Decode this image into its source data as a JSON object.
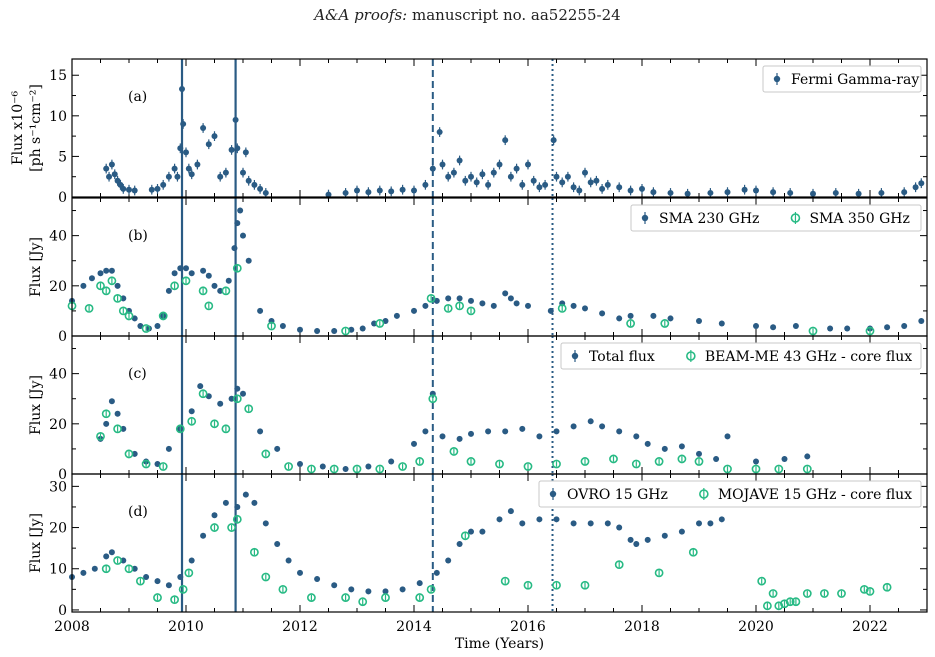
{
  "header": {
    "italic": "A&A proofs:",
    "rest": " manuscript no. aa52255-24"
  },
  "chart_data": {
    "type": "scatter",
    "xlabel": "Time (Years)",
    "xlim": [
      2008,
      2023
    ],
    "x_ticks": [
      "2008",
      "2010",
      "2012",
      "2014",
      "2016",
      "2018",
      "2020",
      "2022"
    ],
    "vlines": [
      {
        "x": 2009.93,
        "style": "solid"
      },
      {
        "x": 2010.87,
        "style": "solid"
      },
      {
        "x": 2014.33,
        "style": "dashed"
      },
      {
        "x": 2016.43,
        "style": "dotted"
      }
    ],
    "colors": {
      "dark": "#2a5b84",
      "green": "#27ba84"
    },
    "panels": [
      {
        "label": "(a)",
        "ylabel": [
          "Flux x10⁻⁶",
          "[ph s⁻¹cm⁻²]"
        ],
        "ylim": [
          0,
          17
        ],
        "y_ticks": [
          "0",
          "5",
          "10",
          "15"
        ],
        "legend": [
          "Fermi Gamma-ray"
        ],
        "series": [
          {
            "name": "Fermi Gamma-ray",
            "marker": "filled",
            "color": "#2a5b84",
            "x": [
              2008.6,
              2008.65,
              2008.7,
              2008.75,
              2008.8,
              2008.85,
              2008.9,
              2009.0,
              2009.1,
              2009.4,
              2009.5,
              2009.6,
              2009.7,
              2009.8,
              2009.85,
              2009.9,
              2009.93,
              2009.95,
              2010.0,
              2010.05,
              2010.1,
              2010.2,
              2010.3,
              2010.4,
              2010.5,
              2010.6,
              2010.7,
              2010.8,
              2010.87,
              2010.9,
              2011.0,
              2011.05,
              2011.1,
              2011.2,
              2011.3,
              2011.4,
              2012.5,
              2012.8,
              2013.0,
              2013.2,
              2013.4,
              2013.6,
              2013.8,
              2014.0,
              2014.2,
              2014.33,
              2014.45,
              2014.5,
              2014.6,
              2014.7,
              2014.8,
              2014.9,
              2015.0,
              2015.1,
              2015.2,
              2015.3,
              2015.4,
              2015.5,
              2015.6,
              2015.7,
              2015.8,
              2015.9,
              2016.0,
              2016.1,
              2016.2,
              2016.3,
              2016.45,
              2016.5,
              2016.6,
              2016.7,
              2016.8,
              2016.9,
              2017.0,
              2017.1,
              2017.2,
              2017.3,
              2017.4,
              2017.6,
              2017.8,
              2018.0,
              2018.2,
              2018.5,
              2018.8,
              2019.2,
              2019.5,
              2019.8,
              2020.0,
              2020.3,
              2020.6,
              2021.0,
              2021.4,
              2021.8,
              2022.2,
              2022.6,
              2022.8,
              2022.9
            ],
            "y": [
              3.5,
              2.5,
              4.0,
              2.8,
              2.0,
              1.5,
              1.0,
              0.9,
              0.8,
              0.9,
              1.0,
              1.5,
              2.5,
              3.5,
              2.5,
              6.0,
              13.3,
              9.0,
              5.5,
              3.5,
              2.8,
              4.0,
              8.5,
              6.5,
              7.5,
              2.5,
              3.0,
              5.8,
              9.5,
              6.0,
              3.0,
              5.5,
              2.0,
              1.5,
              1.0,
              0.5,
              0.3,
              0.5,
              0.8,
              0.6,
              0.8,
              0.7,
              0.9,
              0.8,
              1.5,
              3.5,
              8.0,
              4.0,
              2.5,
              3.0,
              4.5,
              2.0,
              2.5,
              1.8,
              2.8,
              1.5,
              3.0,
              4.0,
              7.0,
              2.5,
              3.5,
              1.5,
              4.0,
              2.0,
              1.2,
              1.5,
              7.0,
              2.5,
              1.8,
              2.5,
              1.2,
              0.8,
              3.0,
              1.8,
              2.0,
              1.0,
              1.5,
              1.2,
              0.8,
              1.0,
              0.6,
              0.5,
              0.4,
              0.5,
              0.6,
              0.9,
              0.8,
              0.6,
              0.5,
              0.4,
              0.5,
              0.4,
              0.5,
              0.6,
              1.2,
              1.7
            ]
          }
        ]
      },
      {
        "label": "(b)",
        "ylabel": [
          "Flux [Jy]"
        ],
        "ylim": [
          0,
          55
        ],
        "y_ticks": [
          "0",
          "20",
          "40"
        ],
        "legend": [
          "SMA 230 GHz",
          "SMA 350 GHz"
        ],
        "series": [
          {
            "name": "SMA 230 GHz",
            "marker": "filled",
            "color": "#2a5b84",
            "x": [
              2008.0,
              2008.2,
              2008.35,
              2008.5,
              2008.6,
              2008.7,
              2008.8,
              2008.9,
              2009.0,
              2009.1,
              2009.2,
              2009.35,
              2009.5,
              2009.6,
              2009.7,
              2009.8,
              2009.9,
              2010.0,
              2010.1,
              2010.3,
              2010.4,
              2010.5,
              2010.6,
              2010.75,
              2010.85,
              2010.9,
              2010.95,
              2011.0,
              2011.1,
              2011.3,
              2011.5,
              2011.7,
              2012.0,
              2012.3,
              2012.6,
              2012.9,
              2013.1,
              2013.3,
              2013.5,
              2013.7,
              2014.0,
              2014.2,
              2014.4,
              2014.6,
              2014.8,
              2015.0,
              2015.2,
              2015.4,
              2015.6,
              2015.7,
              2015.8,
              2016.0,
              2016.4,
              2016.6,
              2016.8,
              2017.0,
              2017.3,
              2017.6,
              2017.8,
              2018.2,
              2018.5,
              2019.0,
              2019.4,
              2020.0,
              2020.3,
              2020.7,
              2021.3,
              2021.6,
              2022.0,
              2022.3,
              2022.6,
              2022.9
            ],
            "y": [
              14,
              20,
              23,
              25,
              26,
              26,
              20,
              15,
              10,
              7,
              4,
              3,
              4,
              8,
              18,
              25,
              27,
              27,
              25,
              26,
              24,
              20,
              18,
              22,
              35,
              45,
              50,
              40,
              30,
              10,
              6,
              4,
              2.5,
              2,
              2,
              2.5,
              3,
              5,
              6,
              8,
              10,
              12,
              14,
              15,
              15,
              14,
              13,
              12,
              17,
              15,
              13,
              12,
              10,
              13,
              12,
              11,
              9,
              7,
              8,
              8,
              7,
              6,
              5,
              4,
              3.5,
              4,
              3,
              3,
              3,
              3.5,
              4,
              6
            ]
          },
          {
            "name": "SMA 350 GHz",
            "marker": "open",
            "color": "#27ba84",
            "x": [
              2008.0,
              2008.3,
              2008.5,
              2008.6,
              2008.7,
              2008.8,
              2008.9,
              2009.0,
              2009.3,
              2009.6,
              2009.8,
              2010.0,
              2010.3,
              2010.4,
              2010.7,
              2010.9,
              2011.5,
              2012.8,
              2013.4,
              2014.3,
              2014.6,
              2014.8,
              2015.0,
              2016.6,
              2017.8,
              2018.4,
              2021.0,
              2022.0
            ],
            "y": [
              12,
              11,
              20,
              18,
              22,
              15,
              10,
              8,
              3,
              8,
              20,
              22,
              18,
              12,
              18,
              27,
              4,
              2,
              5,
              15,
              11,
              12,
              10,
              11,
              5,
              5,
              2,
              2
            ]
          }
        ]
      },
      {
        "label": "(c)",
        "ylabel": [
          "Flux [Jy]"
        ],
        "ylim": [
          0,
          55
        ],
        "y_ticks": [
          "0",
          "20",
          "40"
        ],
        "legend": [
          "Total flux",
          "BEAM-ME 43 GHz - core flux"
        ],
        "series": [
          {
            "name": "Total flux",
            "marker": "filled",
            "color": "#2a5b84",
            "x": [
              2008.5,
              2008.6,
              2008.7,
              2008.8,
              2008.9,
              2009.1,
              2009.3,
              2009.5,
              2009.7,
              2009.9,
              2010.1,
              2010.25,
              2010.4,
              2010.6,
              2010.8,
              2010.9,
              2011.0,
              2011.3,
              2011.6,
              2012.0,
              2012.4,
              2012.8,
              2013.2,
              2013.6,
              2014.0,
              2014.2,
              2014.33,
              2014.5,
              2014.8,
              2015.0,
              2015.3,
              2015.6,
              2015.9,
              2016.2,
              2016.5,
              2016.8,
              2017.1,
              2017.3,
              2017.6,
              2017.9,
              2018.1,
              2018.4,
              2018.7,
              2019.0,
              2019.3,
              2019.5,
              2020.0,
              2020.5,
              2020.9
            ],
            "y": [
              14,
              20,
              29,
              24,
              18,
              8,
              5,
              4,
              10,
              18,
              25,
              35,
              31,
              28,
              30,
              34,
              32,
              17,
              10,
              4,
              3,
              2,
              3,
              5,
              12,
              17,
              32,
              15,
              14,
              16,
              17,
              17,
              18,
              15,
              17,
              19,
              21,
              19,
              17,
              15,
              12,
              10,
              11,
              8,
              6,
              15,
              5,
              6,
              7
            ]
          },
          {
            "name": "BEAM-ME 43 GHz - core flux",
            "marker": "open",
            "color": "#27ba84",
            "x": [
              2008.5,
              2008.6,
              2008.8,
              2009.0,
              2009.3,
              2009.6,
              2009.9,
              2010.1,
              2010.3,
              2010.5,
              2010.7,
              2010.9,
              2011.1,
              2011.4,
              2011.8,
              2012.2,
              2012.6,
              2013.0,
              2013.4,
              2013.8,
              2014.1,
              2014.33,
              2014.7,
              2015.0,
              2015.5,
              2016.0,
              2016.5,
              2017.0,
              2017.5,
              2017.9,
              2018.3,
              2018.7,
              2019.0,
              2019.5,
              2020.0,
              2020.4,
              2020.9
            ],
            "y": [
              15,
              24,
              18,
              8,
              4,
              3,
              18,
              21,
              32,
              20,
              18,
              30,
              26,
              8,
              3,
              2,
              2,
              2,
              2,
              3,
              5,
              30,
              9,
              5,
              4,
              3,
              4,
              5,
              6,
              4,
              5,
              6,
              5,
              2,
              2,
              2,
              2
            ]
          }
        ]
      },
      {
        "label": "(d)",
        "ylabel": [
          "Flux [Jy]"
        ],
        "ylim": [
          -0.5,
          33
        ],
        "y_ticks": [
          "0",
          "10",
          "20",
          "30"
        ],
        "legend": [
          "OVRO 15 GHz",
          "MOJAVE 15 GHz - core flux"
        ],
        "series": [
          {
            "name": "OVRO 15 GHz",
            "marker": "filled",
            "color": "#2a5b84",
            "x": [
              2008.0,
              2008.2,
              2008.4,
              2008.6,
              2008.7,
              2008.9,
              2009.1,
              2009.3,
              2009.5,
              2009.7,
              2009.9,
              2010.1,
              2010.3,
              2010.5,
              2010.7,
              2010.9,
              2011.05,
              2011.2,
              2011.4,
              2011.6,
              2011.8,
              2012.0,
              2012.3,
              2012.6,
              2012.9,
              2013.2,
              2013.5,
              2013.8,
              2014.1,
              2014.4,
              2014.6,
              2014.8,
              2015.0,
              2015.2,
              2015.5,
              2015.7,
              2015.9,
              2016.2,
              2016.5,
              2016.8,
              2017.1,
              2017.4,
              2017.6,
              2017.8,
              2017.9,
              2018.1,
              2018.4,
              2018.7,
              2019.0,
              2019.2,
              2019.4
            ],
            "y": [
              8,
              9,
              10,
              13,
              14,
              12,
              10,
              8,
              7,
              6,
              8,
              12,
              18,
              23,
              26,
              25,
              28,
              26,
              21,
              16,
              12,
              9,
              7.5,
              6,
              5,
              4.5,
              4.5,
              5,
              6.5,
              9,
              12,
              16,
              19,
              19,
              22,
              24,
              21,
              22,
              22,
              21,
              21,
              21,
              20,
              17,
              16,
              17,
              18,
              19,
              21,
              21,
              22
            ]
          },
          {
            "name": "MOJAVE 15 GHz - core flux",
            "marker": "open",
            "color": "#27ba84",
            "x": [
              2008.6,
              2008.8,
              2009.0,
              2009.2,
              2009.5,
              2009.8,
              2009.95,
              2010.05,
              2010.5,
              2010.8,
              2010.9,
              2011.2,
              2011.4,
              2011.7,
              2012.2,
              2012.8,
              2013.1,
              2013.5,
              2014.1,
              2014.3,
              2014.9,
              2015.6,
              2016.0,
              2016.5,
              2017.0,
              2017.6,
              2018.3,
              2018.9,
              2020.1,
              2020.2,
              2020.3,
              2020.4,
              2020.5,
              2020.6,
              2020.7,
              2020.9,
              2021.2,
              2021.5,
              2021.9,
              2022.0,
              2022.3
            ],
            "y": [
              10,
              12,
              10,
              7,
              3,
              2.5,
              5,
              9,
              20,
              20,
              22,
              14,
              8,
              5,
              3,
              3,
              2,
              3,
              3,
              5,
              18,
              7,
              6,
              6,
              6,
              11,
              9,
              14,
              7,
              1,
              4,
              1,
              1.5,
              2,
              2,
              4,
              4,
              4,
              5,
              4.5,
              5.5
            ]
          }
        ]
      }
    ]
  }
}
